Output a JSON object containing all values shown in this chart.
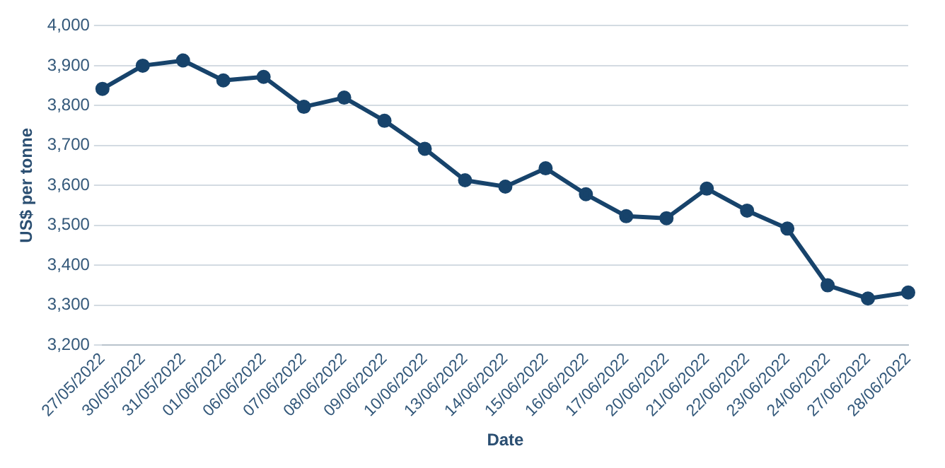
{
  "chart_data": {
    "type": "line",
    "xlabel": "Date",
    "ylabel": "US$ per tonne",
    "categories": [
      "27/05/2022",
      "30/05/2022",
      "31/05/2022",
      "01/06/2022",
      "06/06/2022",
      "07/06/2022",
      "08/06/2022",
      "09/06/2022",
      "10/06/2022",
      "13/06/2022",
      "14/06/2022",
      "15/06/2022",
      "16/06/2022",
      "17/06/2022",
      "20/06/2022",
      "21/06/2022",
      "22/06/2022",
      "23/06/2022",
      "24/06/2022",
      "27/06/2022",
      "28/06/2022"
    ],
    "series": [
      {
        "color": "#17436b",
        "values": [
          3842,
          3900,
          3913,
          3863,
          3872,
          3797,
          3820,
          3762,
          3692,
          3613,
          3597,
          3643,
          3578,
          3523,
          3518,
          3592,
          3537,
          3492,
          3350,
          3317,
          3332
        ]
      }
    ],
    "ylim": [
      3200,
      4000
    ],
    "yticks": [
      {
        "value": 3200,
        "label": "3,200"
      },
      {
        "value": 3300,
        "label": "3,300"
      },
      {
        "value": 3400,
        "label": "3,400"
      },
      {
        "value": 3500,
        "label": "3,500"
      },
      {
        "value": 3600,
        "label": "3,600"
      },
      {
        "value": 3700,
        "label": "3,700"
      },
      {
        "value": 3800,
        "label": "3,800"
      },
      {
        "value": 3900,
        "label": "3,900"
      },
      {
        "value": 4000,
        "label": "4,000"
      }
    ],
    "grid": "y",
    "marker": "circle",
    "line_style": "solid"
  }
}
